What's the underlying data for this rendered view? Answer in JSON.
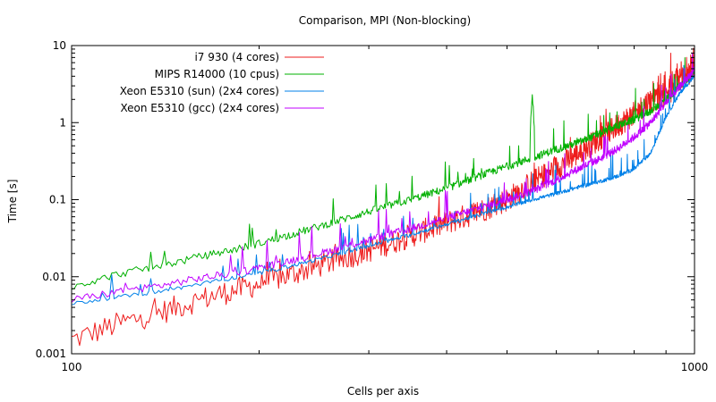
{
  "chart_data": {
    "type": "line",
    "title": "Comparison, MPI (Non-blocking)",
    "xlabel": "Cells per axis",
    "ylabel": "Time [s]",
    "xscale": "log",
    "yscale": "log",
    "xlim": [
      100,
      1000
    ],
    "ylim": [
      0.001,
      10
    ],
    "x_ticks": [
      100,
      1000
    ],
    "x_tick_labels": [
      "100",
      "1000"
    ],
    "y_ticks": [
      0.001,
      0.01,
      0.1,
      1,
      10
    ],
    "y_tick_labels": [
      "0.001",
      "0.01",
      "0.1",
      "1",
      "10"
    ],
    "legend_position": "top-left",
    "grid": false,
    "x": [
      100,
      120,
      140,
      160,
      180,
      200,
      250,
      300,
      350,
      400,
      450,
      500,
      550,
      600,
      650,
      700,
      750,
      800,
      850,
      900,
      950,
      1000
    ],
    "series": [
      {
        "name": "i7 930 (4 cores)",
        "color": "#ee1c1c",
        "values": [
          0.0015,
          0.0025,
          0.0035,
          0.005,
          0.0065,
          0.008,
          0.014,
          0.022,
          0.034,
          0.05,
          0.07,
          0.1,
          0.17,
          0.26,
          0.4,
          0.6,
          0.9,
          1.3,
          2.0,
          2.8,
          4.0,
          5.5
        ]
      },
      {
        "name": "MIPS R14000 (10 cpus)",
        "color": "#00b000",
        "values": [
          0.0075,
          0.011,
          0.014,
          0.018,
          0.022,
          0.027,
          0.045,
          0.07,
          0.1,
          0.14,
          0.2,
          0.27,
          0.35,
          0.45,
          0.55,
          0.7,
          0.9,
          1.1,
          1.4,
          2.0,
          3.0,
          4.5
        ]
      },
      {
        "name": "Xeon E5310 (sun) (2x4 cores)",
        "color": "#0080e8",
        "values": [
          0.0045,
          0.0055,
          0.0065,
          0.008,
          0.0095,
          0.011,
          0.017,
          0.025,
          0.035,
          0.048,
          0.063,
          0.08,
          0.1,
          0.12,
          0.145,
          0.17,
          0.2,
          0.25,
          0.4,
          1.2,
          2.5,
          4.0
        ]
      },
      {
        "name": "Xeon E5310 (gcc) (2x4 cores)",
        "color": "#c000ff",
        "values": [
          0.005,
          0.0065,
          0.0078,
          0.0095,
          0.011,
          0.013,
          0.02,
          0.03,
          0.042,
          0.058,
          0.077,
          0.1,
          0.13,
          0.18,
          0.25,
          0.33,
          0.45,
          0.65,
          1.0,
          1.8,
          3.0,
          4.8
        ]
      }
    ],
    "annotations": [
      {
        "series": "MIPS R14000 (10 cpus)",
        "x": 550,
        "y": 1.9,
        "note": "spike"
      }
    ]
  }
}
